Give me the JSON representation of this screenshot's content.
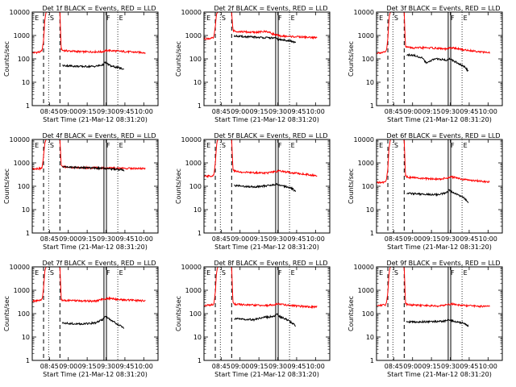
{
  "figure": {
    "start_time_label": "Start Time (21-Mar-12 08:31:20)",
    "ylabel": "Counts/sec",
    "y_ticks": [
      "1",
      "10",
      "100",
      "1000",
      "10000"
    ],
    "x_ticks": [
      "08:45",
      "09:00",
      "09:15",
      "09:30",
      "09:45",
      "10:00"
    ],
    "colors": {
      "events": "#000000",
      "lld": "#ff0000",
      "axes": "#000000"
    }
  },
  "chart_data": [
    {
      "type": "line",
      "title": "Det 1f BLACK = Events, RED = LLD",
      "xlabel": "Start Time (21-Mar-12 08:31:20)",
      "ylabel": "Counts/sec",
      "ylim": [
        1,
        10000
      ],
      "yscale": "log",
      "xlim": [
        0,
        100
      ],
      "x_unit": "minutes since start",
      "series": [
        {
          "name": "LLD",
          "color": "#ff0000",
          "x": [
            0,
            7,
            8,
            9,
            10,
            11,
            22,
            23,
            24,
            30,
            40,
            55,
            60,
            70,
            80,
            90
          ],
          "values": [
            180,
            200,
            260,
            600,
            5000,
            10000,
            10000,
            260,
            230,
            215,
            200,
            200,
            230,
            210,
            195,
            185
          ]
        },
        {
          "name": "Events",
          "color": "#000000",
          "x": [
            24,
            30,
            40,
            50,
            56,
            58,
            60,
            63,
            66,
            70,
            73
          ],
          "values": [
            52,
            50,
            47,
            48,
            55,
            70,
            60,
            48,
            45,
            40,
            35
          ]
        }
      ],
      "markers": {
        "dashed": [
          9,
          22
        ],
        "solid": [
          57,
          59
        ],
        "dotted": [
          13,
          68
        ],
        "letters": [
          {
            "x": 2,
            "label": "E"
          },
          {
            "x": 14,
            "label": "S"
          },
          {
            "x": 59,
            "label": "F"
          },
          {
            "x": 69,
            "label": "E"
          }
        ]
      }
    },
    {
      "type": "line",
      "title": "Det 2f BLACK = Events, RED = LLD",
      "xlabel": "Start Time (21-Mar-12 08:31:20)",
      "ylabel": "Counts/sec",
      "ylim": [
        1,
        10000
      ],
      "yscale": "log",
      "xlim": [
        0,
        100
      ],
      "x_unit": "minutes since start",
      "series": [
        {
          "name": "LLD",
          "color": "#ff0000",
          "x": [
            0,
            7,
            8,
            9,
            10,
            11,
            22,
            23,
            24,
            30,
            40,
            50,
            55,
            60,
            70,
            80,
            90
          ],
          "values": [
            720,
            760,
            900,
            2500,
            8000,
            10000,
            10000,
            1700,
            1550,
            1450,
            1350,
            1500,
            1150,
            950,
            900,
            850,
            800
          ]
        },
        {
          "name": "Events",
          "color": "#000000",
          "x": [
            24,
            30,
            40,
            50,
            56,
            58,
            60,
            66,
            70,
            73
          ],
          "values": [
            950,
            900,
            850,
            800,
            780,
            720,
            660,
            620,
            560,
            480
          ]
        }
      ],
      "markers": {
        "dashed": [
          9,
          22
        ],
        "solid": [
          57,
          59
        ],
        "dotted": [
          13,
          68
        ],
        "letters": [
          {
            "x": 2,
            "label": "E"
          },
          {
            "x": 14,
            "label": "S"
          },
          {
            "x": 59,
            "label": "F"
          },
          {
            "x": 69,
            "label": "E"
          }
        ]
      }
    },
    {
      "type": "line",
      "title": "Det 3f BLACK = Events, RED = LLD",
      "xlabel": "Start Time (21-Mar-12 08:31:20)",
      "ylabel": "Counts/sec",
      "ylim": [
        1,
        10000
      ],
      "yscale": "log",
      "xlim": [
        0,
        100
      ],
      "x_unit": "minutes since start",
      "series": [
        {
          "name": "LLD",
          "color": "#ff0000",
          "x": [
            0,
            7,
            8,
            9,
            10,
            11,
            22,
            23,
            24,
            30,
            40,
            50,
            55,
            60,
            70,
            80,
            90
          ],
          "values": [
            180,
            190,
            250,
            700,
            6000,
            10000,
            10000,
            360,
            320,
            290,
            300,
            280,
            260,
            300,
            240,
            210,
            180
          ]
        },
        {
          "name": "Events",
          "color": "#000000",
          "x": [
            24,
            30,
            36,
            40,
            46,
            52,
            56,
            58,
            60,
            66,
            70,
            73
          ],
          "values": [
            150,
            140,
            110,
            65,
            100,
            95,
            85,
            105,
            90,
            60,
            45,
            30
          ]
        }
      ],
      "markers": {
        "dashed": [
          9,
          22
        ],
        "solid": [
          57,
          59
        ],
        "dotted": [
          13,
          68
        ],
        "letters": [
          {
            "x": 2,
            "label": "E"
          },
          {
            "x": 14,
            "label": "S"
          },
          {
            "x": 59,
            "label": "F"
          },
          {
            "x": 69,
            "label": "E"
          }
        ]
      }
    },
    {
      "type": "line",
      "title": "Det 4f BLACK = Events, RED = LLD",
      "xlabel": "Start Time (21-Mar-12 08:31:20)",
      "ylabel": "Counts/sec",
      "ylim": [
        1,
        10000
      ],
      "yscale": "log",
      "xlim": [
        0,
        100
      ],
      "x_unit": "minutes since start",
      "series": [
        {
          "name": "LLD",
          "color": "#ff0000",
          "x": [
            0,
            7,
            8,
            9,
            10,
            11,
            22,
            23,
            24,
            30,
            40,
            50,
            60,
            70,
            80,
            90
          ],
          "values": [
            560,
            580,
            700,
            2000,
            7000,
            10000,
            10000,
            800,
            700,
            640,
            620,
            610,
            600,
            590,
            580,
            570
          ]
        },
        {
          "name": "Events",
          "color": "#000000",
          "x": [
            24,
            30,
            40,
            50,
            56,
            58,
            60,
            66,
            70,
            73
          ],
          "values": [
            700,
            650,
            620,
            600,
            590,
            580,
            560,
            540,
            520,
            470
          ]
        }
      ],
      "markers": {
        "dashed": [
          9,
          22
        ],
        "solid": [
          57,
          59
        ],
        "dotted": [
          13,
          68
        ],
        "letters": [
          {
            "x": 2,
            "label": "E"
          },
          {
            "x": 14,
            "label": "S"
          },
          {
            "x": 59,
            "label": "F"
          },
          {
            "x": 69,
            "label": "E"
          }
        ]
      }
    },
    {
      "type": "line",
      "title": "Det 5f BLACK = Events, RED = LLD",
      "xlabel": "Start Time (21-Mar-12 08:31:20)",
      "ylabel": "Counts/sec",
      "ylim": [
        1,
        10000
      ],
      "yscale": "log",
      "xlim": [
        0,
        100
      ],
      "x_unit": "minutes since start",
      "series": [
        {
          "name": "LLD",
          "color": "#ff0000",
          "x": [
            0,
            7,
            8,
            9,
            10,
            11,
            22,
            23,
            24,
            30,
            40,
            50,
            55,
            60,
            70,
            80,
            90
          ],
          "values": [
            260,
            280,
            350,
            900,
            6000,
            10000,
            10000,
            520,
            450,
            400,
            380,
            370,
            400,
            450,
            380,
            330,
            280
          ]
        },
        {
          "name": "Events",
          "color": "#000000",
          "x": [
            24,
            30,
            40,
            50,
            56,
            58,
            60,
            66,
            70,
            73
          ],
          "values": [
            110,
            100,
            95,
            105,
            115,
            125,
            110,
            95,
            80,
            60
          ]
        }
      ],
      "markers": {
        "dashed": [
          9,
          22
        ],
        "solid": [
          57,
          59
        ],
        "dotted": [
          13,
          68
        ],
        "letters": [
          {
            "x": 2,
            "label": "E"
          },
          {
            "x": 14,
            "label": "S"
          },
          {
            "x": 59,
            "label": "F"
          },
          {
            "x": 69,
            "label": "E"
          }
        ]
      }
    },
    {
      "type": "line",
      "title": "Det 6f BLACK = Events, RED = LLD",
      "xlabel": "Start Time (21-Mar-12 08:31:20)",
      "ylabel": "Counts/sec",
      "ylim": [
        1,
        10000
      ],
      "yscale": "log",
      "xlim": [
        0,
        100
      ],
      "x_unit": "minutes since start",
      "series": [
        {
          "name": "LLD",
          "color": "#ff0000",
          "x": [
            0,
            7,
            8,
            9,
            10,
            11,
            22,
            23,
            24,
            30,
            40,
            50,
            55,
            60,
            70,
            80,
            90
          ],
          "values": [
            140,
            150,
            200,
            600,
            5000,
            10000,
            10000,
            280,
            250,
            230,
            210,
            200,
            220,
            250,
            190,
            170,
            150
          ]
        },
        {
          "name": "Events",
          "color": "#000000",
          "x": [
            24,
            30,
            40,
            50,
            56,
            58,
            60,
            66,
            70,
            73
          ],
          "values": [
            50,
            48,
            45,
            44,
            55,
            70,
            55,
            40,
            30,
            20
          ]
        }
      ],
      "markers": {
        "dashed": [
          9,
          22
        ],
        "solid": [
          57,
          59
        ],
        "dotted": [
          13,
          68
        ],
        "letters": [
          {
            "x": 2,
            "label": "E"
          },
          {
            "x": 14,
            "label": "S"
          },
          {
            "x": 59,
            "label": "F"
          },
          {
            "x": 69,
            "label": "E"
          }
        ]
      }
    },
    {
      "type": "line",
      "title": "Det 7f BLACK = Events, RED = LLD",
      "xlabel": "Start Time (21-Mar-12 08:31:20)",
      "ylabel": "Counts/sec",
      "ylim": [
        1,
        10000
      ],
      "yscale": "log",
      "xlim": [
        0,
        100
      ],
      "x_unit": "minutes since start",
      "series": [
        {
          "name": "LLD",
          "color": "#ff0000",
          "x": [
            0,
            7,
            8,
            9,
            10,
            11,
            22,
            23,
            24,
            30,
            40,
            50,
            55,
            60,
            70,
            80,
            90
          ],
          "values": [
            340,
            360,
            450,
            1200,
            7000,
            10000,
            10000,
            420,
            380,
            360,
            350,
            340,
            400,
            450,
            400,
            370,
            350
          ]
        },
        {
          "name": "Events",
          "color": "#000000",
          "x": [
            24,
            30,
            40,
            50,
            56,
            58,
            60,
            63,
            66,
            70,
            73
          ],
          "values": [
            40,
            38,
            36,
            40,
            55,
            80,
            65,
            50,
            40,
            30,
            25
          ]
        }
      ],
      "markers": {
        "dashed": [
          9,
          22
        ],
        "solid": [
          57,
          59
        ],
        "dotted": [
          13,
          68
        ],
        "letters": [
          {
            "x": 2,
            "label": "E"
          },
          {
            "x": 14,
            "label": "S"
          },
          {
            "x": 59,
            "label": "F"
          },
          {
            "x": 69,
            "label": "E"
          }
        ]
      }
    },
    {
      "type": "line",
      "title": "Det 8f BLACK = Events, RED = LLD",
      "xlabel": "Start Time (21-Mar-12 08:31:20)",
      "ylabel": "Counts/sec",
      "ylim": [
        1,
        10000
      ],
      "yscale": "log",
      "xlim": [
        0,
        100
      ],
      "x_unit": "minutes since start",
      "series": [
        {
          "name": "LLD",
          "color": "#ff0000",
          "x": [
            0,
            7,
            8,
            9,
            10,
            11,
            22,
            23,
            24,
            30,
            40,
            50,
            55,
            60,
            70,
            80,
            90
          ],
          "values": [
            220,
            240,
            300,
            800,
            6000,
            10000,
            10000,
            300,
            260,
            240,
            230,
            220,
            240,
            260,
            220,
            200,
            190
          ]
        },
        {
          "name": "Events",
          "color": "#000000",
          "x": [
            24,
            30,
            40,
            48,
            52,
            56,
            58,
            60,
            66,
            70,
            73
          ],
          "values": [
            60,
            58,
            55,
            70,
            72,
            80,
            95,
            75,
            55,
            40,
            30
          ]
        }
      ],
      "markers": {
        "dashed": [
          9,
          22
        ],
        "solid": [
          57,
          59
        ],
        "dotted": [
          13,
          68
        ],
        "letters": [
          {
            "x": 2,
            "label": "E"
          },
          {
            "x": 14,
            "label": "S"
          },
          {
            "x": 59,
            "label": "F"
          },
          {
            "x": 69,
            "label": "E"
          }
        ]
      }
    },
    {
      "type": "line",
      "title": "Det 9f BLACK = Events, RED = LLD",
      "xlabel": "Start Time (21-Mar-12 08:31:20)",
      "ylabel": "Counts/sec",
      "ylim": [
        1,
        10000
      ],
      "yscale": "log",
      "xlim": [
        0,
        100
      ],
      "x_unit": "minutes since start",
      "series": [
        {
          "name": "LLD",
          "color": "#ff0000",
          "x": [
            0,
            7,
            8,
            9,
            10,
            11,
            22,
            23,
            24,
            30,
            40,
            50,
            55,
            60,
            70,
            80,
            90
          ],
          "values": [
            220,
            240,
            300,
            800,
            6000,
            10000,
            10000,
            280,
            250,
            230,
            220,
            210,
            240,
            260,
            220,
            210,
            200
          ]
        },
        {
          "name": "Events",
          "color": "#000000",
          "x": [
            24,
            30,
            40,
            50,
            56,
            58,
            60,
            66,
            70,
            73
          ],
          "values": [
            45,
            44,
            45,
            46,
            50,
            55,
            50,
            42,
            38,
            30
          ]
        }
      ],
      "markers": {
        "dashed": [
          9,
          22
        ],
        "solid": [
          57,
          59
        ],
        "dotted": [
          13,
          68
        ],
        "letters": [
          {
            "x": 2,
            "label": "E"
          },
          {
            "x": 14,
            "label": "S"
          },
          {
            "x": 59,
            "label": "F"
          },
          {
            "x": 69,
            "label": "E"
          }
        ]
      }
    }
  ]
}
